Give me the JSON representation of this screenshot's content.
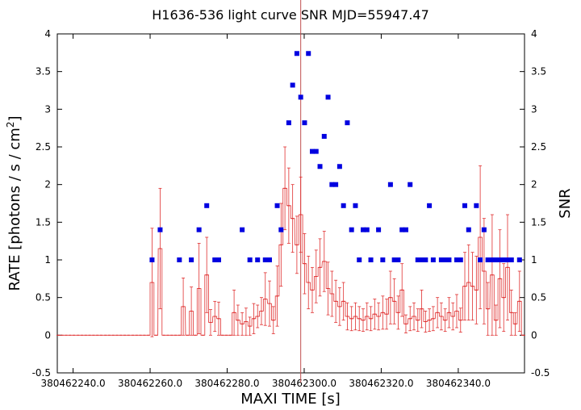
{
  "chart_data": {
    "type": "scatter",
    "title": "H1636-536 light curve  SNR MJD=55947.47",
    "xlabel": "MAXI TIME [s]",
    "ylabel_left_prefix": "RATE [photons / s / cm",
    "ylabel_left_sup": "2",
    "ylabel_left_suffix": "]",
    "ylabel_right": "SNR",
    "xlim": [
      380462235.9,
      380462357.2
    ],
    "ylim": [
      -0.5,
      4
    ],
    "xticks": [
      {
        "value": 380462240,
        "label": "380462240.0"
      },
      {
        "value": 380462260,
        "label": "380462260.0"
      },
      {
        "value": 380462280,
        "label": "380462280.0"
      },
      {
        "value": 380462300,
        "label": "380462300.0"
      },
      {
        "value": 380462320,
        "label": "380462320.0"
      },
      {
        "value": 380462340,
        "label": "380462340.0"
      }
    ],
    "yticks": [
      {
        "value": -0.5,
        "label": "-0.5"
      },
      {
        "value": 0,
        "label": "0"
      },
      {
        "value": 0.5,
        "label": "0.5"
      },
      {
        "value": 1,
        "label": "1"
      },
      {
        "value": 1.5,
        "label": "1.5"
      },
      {
        "value": 2,
        "label": "2"
      },
      {
        "value": 2.5,
        "label": "2.5"
      },
      {
        "value": 3,
        "label": "3"
      },
      {
        "value": 3.5,
        "label": "3.5"
      },
      {
        "value": 4,
        "label": "4"
      }
    ],
    "vertical_line_x": 380462299.1,
    "colors": {
      "rate": "#e03030",
      "snr": "#0000e0",
      "marker_line": "#c05050",
      "axes": "#000000"
    },
    "rate": {
      "x": [
        380462236.2,
        380462237.2,
        380462238.2,
        380462239.2,
        380462240.2,
        380462241.3,
        380462242.3,
        380462243.3,
        380462244.3,
        380462245.3,
        380462246.3,
        380462247.3,
        380462248.4,
        380462249.4,
        380462250.4,
        380462251.4,
        380462252.4,
        380462253.4,
        380462254.4,
        380462255.5,
        380462256.5,
        380462257.5,
        380462258.5,
        380462259.5,
        380462260.5,
        380462261.5,
        380462262.6,
        380462263.6,
        380462264.6,
        380462265.6,
        380462266.6,
        380462267.6,
        380462268.6,
        380462269.7,
        380462270.7,
        380462271.7,
        380462272.7,
        380462273.7,
        380462274.7,
        380462275.7,
        380462276.8,
        380462277.8,
        380462278.8,
        380462279.8,
        380462280.8,
        380462281.8,
        380462282.8,
        380462283.9,
        380462284.9,
        380462285.9,
        380462286.9,
        380462287.9,
        380462288.9,
        380462289.9,
        380462291.0,
        380462292.0,
        380462293.0,
        380462294.0,
        380462295.0,
        380462296.0,
        380462297.0,
        380462298.1,
        380462299.1,
        380462300.1,
        380462301.1,
        380462302.1,
        380462303.1,
        380462304.1,
        380462305.2,
        380462306.2,
        380462307.2,
        380462308.2,
        380462309.2,
        380462310.2,
        380462311.2,
        380462312.3,
        380462313.3,
        380462314.3,
        380462315.3,
        380462316.3,
        380462317.3,
        380462318.3,
        380462319.3,
        380462320.4,
        380462321.4,
        380462322.4,
        380462323.4,
        380462324.4,
        380462325.4,
        380462326.4,
        380462327.5,
        380462328.5,
        380462329.5,
        380462330.5,
        380462331.5,
        380462332.5,
        380462333.5,
        380462334.6,
        380462335.6,
        380462336.6,
        380462337.6,
        380462338.6,
        380462339.6,
        380462340.6,
        380462341.7,
        380462342.7,
        380462343.7,
        380462344.7,
        380462345.7,
        380462346.7,
        380462347.7,
        380462348.8,
        380462349.8,
        380462350.8,
        380462351.8,
        380462352.8,
        380462353.8,
        380462354.8,
        380462355.9,
        380462356.9
      ],
      "y": [
        0,
        0,
        0,
        0,
        0,
        0,
        0,
        0,
        0,
        0,
        0,
        0,
        0,
        0,
        0,
        0,
        0,
        0,
        0,
        0,
        0,
        0,
        0,
        0,
        0.7,
        0,
        1.15,
        0,
        0,
        0,
        0,
        0,
        0.38,
        0,
        0.32,
        0,
        0.62,
        0,
        0.8,
        0.17,
        0.25,
        0.22,
        0,
        0,
        0,
        0.3,
        0.2,
        0.15,
        0.18,
        0.12,
        0.22,
        0.25,
        0.32,
        0.48,
        0.42,
        0.2,
        0.52,
        1.2,
        1.95,
        1.72,
        1.55,
        1.2,
        1.6,
        0.95,
        0.7,
        0.6,
        0.78,
        0.9,
        0.98,
        0.62,
        0.55,
        0.45,
        0.38,
        0.45,
        0.25,
        0.22,
        0.25,
        0.22,
        0.2,
        0.25,
        0.22,
        0.28,
        0.25,
        0.3,
        0.28,
        0.5,
        0.45,
        0.3,
        0.6,
        0.15,
        0.22,
        0.25,
        0.2,
        0.35,
        0.18,
        0.2,
        0.22,
        0.3,
        0.25,
        0.2,
        0.3,
        0.25,
        0.32,
        0.2,
        0.65,
        0.7,
        0.65,
        0.6,
        1.3,
        0.85,
        0.35,
        0.8,
        0.2,
        0.75,
        0.5,
        0.9,
        0.3,
        0.15,
        0.45,
        0.0
      ],
      "err": [
        0,
        0,
        0,
        0,
        0,
        0,
        0,
        0,
        0,
        0,
        0,
        0,
        0,
        0,
        0,
        0,
        0,
        0,
        0,
        0,
        0,
        0,
        0,
        0,
        0.72,
        0,
        0.8,
        0,
        0,
        0,
        0,
        0,
        0.38,
        0,
        0.32,
        0,
        0.6,
        0,
        0.5,
        0.17,
        0.2,
        0.22,
        0,
        0,
        0,
        0.3,
        0.2,
        0.15,
        0.18,
        0.12,
        0.2,
        0.15,
        0.18,
        0.35,
        0.3,
        0.18,
        0.4,
        0.55,
        0.55,
        0.5,
        0.45,
        0.38,
        0.5,
        0.4,
        0.35,
        0.3,
        0.35,
        0.38,
        0.4,
        0.35,
        0.3,
        0.28,
        0.25,
        0.25,
        0.18,
        0.16,
        0.18,
        0.16,
        0.15,
        0.18,
        0.16,
        0.2,
        0.18,
        0.22,
        0.2,
        0.35,
        0.3,
        0.22,
        0.35,
        0.12,
        0.16,
        0.18,
        0.15,
        0.25,
        0.14,
        0.15,
        0.16,
        0.2,
        0.18,
        0.15,
        0.2,
        0.18,
        0.22,
        0.16,
        0.45,
        0.5,
        0.45,
        0.45,
        0.95,
        0.7,
        0.35,
        0.8,
        0.2,
        0.65,
        0.45,
        0.7,
        0.3,
        0.15,
        0.4,
        0.0
      ]
    },
    "snr": {
      "x": [
        380462260.5,
        380462262.6,
        380462267.6,
        380462270.7,
        380462272.7,
        380462274.7,
        380462276.8,
        380462277.8,
        380462283.9,
        380462285.9,
        380462287.9,
        380462289.9,
        380462291.0,
        380462293.0,
        380462294.0,
        380462296.0,
        380462297.0,
        380462298.1,
        380462299.1,
        380462300.1,
        380462301.1,
        380462302.1,
        380462303.1,
        380462304.1,
        380462305.2,
        380462306.2,
        380462307.2,
        380462308.2,
        380462309.2,
        380462310.2,
        380462311.2,
        380462312.3,
        380462313.3,
        380462314.3,
        380462315.3,
        380462316.3,
        380462317.3,
        380462319.3,
        380462320.4,
        380462322.4,
        380462323.4,
        380462324.4,
        380462325.4,
        380462326.4,
        380462327.5,
        380462329.5,
        380462330.5,
        380462331.5,
        380462332.5,
        380462333.5,
        380462335.6,
        380462336.6,
        380462337.6,
        380462339.6,
        380462340.6,
        380462341.7,
        380462342.7,
        380462344.7,
        380462345.7,
        380462346.7,
        380462347.7,
        380462348.8,
        380462349.8,
        380462350.8,
        380462351.8,
        380462352.8,
        380462353.8,
        380462355.9
      ],
      "y": [
        1.0,
        1.4,
        1.0,
        1.0,
        1.4,
        1.72,
        1.0,
        1.0,
        1.4,
        1.0,
        1.0,
        1.0,
        1.0,
        1.72,
        1.4,
        2.82,
        3.32,
        3.74,
        3.16,
        2.82,
        3.74,
        2.44,
        2.44,
        2.24,
        2.64,
        3.16,
        2.0,
        2.0,
        2.24,
        1.72,
        2.82,
        1.4,
        1.72,
        1.0,
        1.4,
        1.4,
        1.0,
        1.4,
        1.0,
        2.0,
        1.0,
        1.0,
        1.4,
        1.4,
        2.0,
        1.0,
        1.0,
        1.0,
        1.72,
        1.0,
        1.0,
        1.0,
        1.0,
        1.0,
        1.0,
        1.72,
        1.4,
        1.72,
        1.0,
        1.4,
        1.0,
        1.0,
        1.0,
        1.0,
        1.0,
        1.0,
        1.0,
        1.0
      ]
    }
  }
}
